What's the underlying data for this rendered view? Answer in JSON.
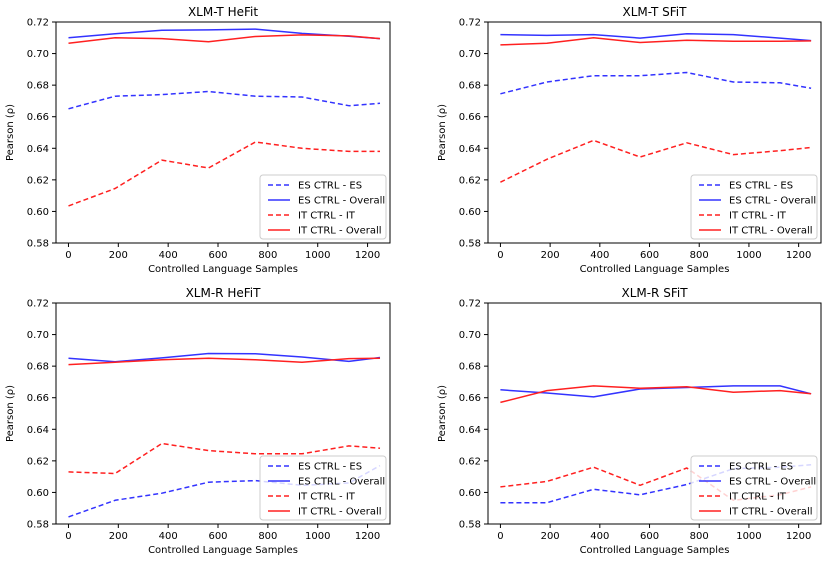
{
  "colors": {
    "es": "#3333ff",
    "it": "#ff2020"
  },
  "chart_data": [
    {
      "type": "line",
      "title": "XLM-T HeFit",
      "xlabel": "Controlled Language Samples",
      "ylabel": "Pearson (ρ)",
      "xlim": [
        -50,
        1290
      ],
      "ylim": [
        0.58,
        0.72
      ],
      "xticks": [
        0,
        200,
        400,
        600,
        800,
        1000,
        1200
      ],
      "yticks": [
        "0.58",
        "0.60",
        "0.62",
        "0.64",
        "0.66",
        "0.68",
        "0.70",
        "0.72"
      ],
      "legend_position": "bottom-right",
      "x": [
        0,
        187,
        375,
        562,
        750,
        937,
        1125,
        1250
      ],
      "series": [
        {
          "name": "ES CTRL - ES",
          "color_key": "es",
          "style": "dashed",
          "values": [
            0.665,
            0.673,
            0.674,
            0.676,
            0.673,
            0.6725,
            0.667,
            0.6685
          ]
        },
        {
          "name": "ES CTRL - Overall",
          "color_key": "es",
          "style": "solid",
          "values": [
            0.71,
            0.7125,
            0.7148,
            0.715,
            0.7155,
            0.7128,
            0.711,
            0.7095
          ]
        },
        {
          "name": "IT CTRL - IT",
          "color_key": "it",
          "style": "dashed",
          "values": [
            0.6035,
            0.6145,
            0.6325,
            0.6275,
            0.644,
            0.64,
            0.638,
            0.638
          ]
        },
        {
          "name": "IT CTRL - Overall",
          "color_key": "it",
          "style": "solid",
          "values": [
            0.7065,
            0.71,
            0.7095,
            0.7075,
            0.7108,
            0.7118,
            0.7112,
            0.7095
          ]
        }
      ]
    },
    {
      "type": "line",
      "title": "XLM-T SFiT",
      "xlabel": "Controlled Language Samples",
      "ylabel": "Pearson (ρ)",
      "xlim": [
        -50,
        1290
      ],
      "ylim": [
        0.58,
        0.72
      ],
      "xticks": [
        0,
        200,
        400,
        600,
        800,
        1000,
        1200
      ],
      "yticks": [
        "0.58",
        "0.60",
        "0.62",
        "0.64",
        "0.66",
        "0.68",
        "0.70",
        "0.72"
      ],
      "legend_position": "bottom-right",
      "x": [
        0,
        187,
        375,
        562,
        750,
        937,
        1125,
        1250
      ],
      "series": [
        {
          "name": "ES CTRL - ES",
          "color_key": "es",
          "style": "dashed",
          "values": [
            0.6745,
            0.682,
            0.686,
            0.686,
            0.688,
            0.682,
            0.6815,
            0.678
          ]
        },
        {
          "name": "ES CTRL - Overall",
          "color_key": "es",
          "style": "solid",
          "values": [
            0.712,
            0.7115,
            0.712,
            0.7098,
            0.7125,
            0.712,
            0.7098,
            0.7082
          ]
        },
        {
          "name": "IT CTRL - IT",
          "color_key": "it",
          "style": "dashed",
          "values": [
            0.6185,
            0.633,
            0.645,
            0.6345,
            0.6435,
            0.636,
            0.6385,
            0.6405
          ]
        },
        {
          "name": "IT CTRL - Overall",
          "color_key": "it",
          "style": "solid",
          "values": [
            0.7055,
            0.7065,
            0.71,
            0.707,
            0.7085,
            0.7078,
            0.7078,
            0.708
          ]
        }
      ]
    },
    {
      "type": "line",
      "title": "XLM-R HeFiT",
      "xlabel": "Controlled Language Samples",
      "ylabel": "Pearson (ρ)",
      "xlim": [
        -50,
        1290
      ],
      "ylim": [
        0.58,
        0.72
      ],
      "xticks": [
        0,
        200,
        400,
        600,
        800,
        1000,
        1200
      ],
      "yticks": [
        "0.58",
        "0.60",
        "0.62",
        "0.64",
        "0.66",
        "0.68",
        "0.70",
        "0.72"
      ],
      "legend_position": "bottom-right",
      "x": [
        0,
        187,
        375,
        562,
        750,
        937,
        1125,
        1250
      ],
      "series": [
        {
          "name": "ES CTRL - ES",
          "color_key": "es",
          "style": "dashed",
          "values": [
            0.5845,
            0.595,
            0.5995,
            0.6065,
            0.6075,
            0.6045,
            0.606,
            0.617
          ]
        },
        {
          "name": "ES CTRL - Overall",
          "color_key": "es",
          "style": "solid",
          "values": [
            0.685,
            0.6828,
            0.6852,
            0.688,
            0.6878,
            0.6858,
            0.683,
            0.6855
          ]
        },
        {
          "name": "IT CTRL - IT",
          "color_key": "it",
          "style": "dashed",
          "values": [
            0.613,
            0.612,
            0.631,
            0.6265,
            0.6245,
            0.6245,
            0.6295,
            0.628
          ]
        },
        {
          "name": "IT CTRL - Overall",
          "color_key": "it",
          "style": "solid",
          "values": [
            0.681,
            0.6825,
            0.684,
            0.685,
            0.684,
            0.6825,
            0.6848,
            0.685
          ]
        }
      ]
    },
    {
      "type": "line",
      "title": "XLM-R SFiT",
      "xlabel": "Controlled Language Samples",
      "ylabel": "Pearson (ρ)",
      "xlim": [
        -50,
        1290
      ],
      "ylim": [
        0.58,
        0.72
      ],
      "xticks": [
        0,
        200,
        400,
        600,
        800,
        1000,
        1200
      ],
      "yticks": [
        "0.58",
        "0.60",
        "0.62",
        "0.64",
        "0.66",
        "0.68",
        "0.70",
        "0.72"
      ],
      "legend_position": "bottom-right",
      "x": [
        0,
        187,
        375,
        562,
        750,
        937,
        1125,
        1250
      ],
      "series": [
        {
          "name": "ES CTRL - ES",
          "color_key": "es",
          "style": "dashed",
          "values": [
            0.5935,
            0.5935,
            0.602,
            0.5985,
            0.605,
            0.615,
            0.616,
            0.6175
          ]
        },
        {
          "name": "ES CTRL - Overall",
          "color_key": "es",
          "style": "solid",
          "values": [
            0.665,
            0.663,
            0.6605,
            0.6655,
            0.6665,
            0.6675,
            0.6675,
            0.6625
          ]
        },
        {
          "name": "IT CTRL - IT",
          "color_key": "it",
          "style": "dashed",
          "values": [
            0.6035,
            0.607,
            0.616,
            0.6045,
            0.6155,
            0.595,
            0.5985,
            0.6035
          ]
        },
        {
          "name": "IT CTRL - Overall",
          "color_key": "it",
          "style": "solid",
          "values": [
            0.657,
            0.6645,
            0.6675,
            0.666,
            0.667,
            0.6635,
            0.6645,
            0.6625
          ]
        }
      ]
    }
  ]
}
